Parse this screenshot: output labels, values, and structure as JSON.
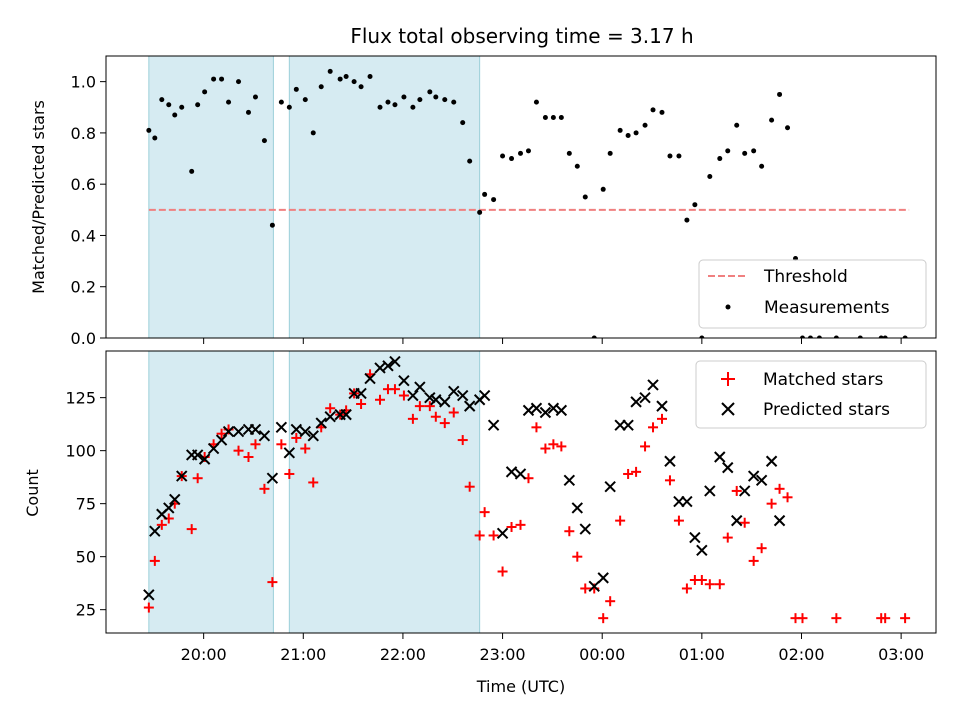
{
  "chart_data": [
    {
      "type": "scatter",
      "title": "Flux total observing time = 3.17 h",
      "xlabel": "",
      "ylabel": "Matched/Predicted stars",
      "ylim": [
        0,
        1.1
      ],
      "yticks": [
        0.0,
        0.2,
        0.4,
        0.6,
        0.8,
        1.0
      ],
      "ytick_labels": [
        "0.0",
        "0.2",
        "0.4",
        "0.6",
        "0.8",
        "1.0"
      ],
      "x_unit": "hours after 00:00 UTC of first night",
      "xlim": [
        19.02,
        27.35
      ],
      "legend_position": "lower-right",
      "legend": [
        {
          "name": "Threshold",
          "color": "#f08080"
        },
        {
          "name": "Measurements",
          "color": "#000000"
        }
      ],
      "shaded_intervals": [
        [
          19.45,
          20.7
        ],
        [
          20.86,
          22.77
        ]
      ],
      "threshold": {
        "value": 0.5,
        "x_range": [
          19.45,
          27.08
        ]
      },
      "x": [
        19.45,
        19.51,
        19.58,
        19.65,
        19.71,
        19.78,
        19.88,
        19.94,
        20.01,
        20.1,
        20.18,
        20.25,
        20.35,
        20.45,
        20.52,
        20.61,
        20.69,
        20.78,
        20.86,
        20.93,
        21.02,
        21.1,
        21.18,
        21.27,
        21.37,
        21.43,
        21.51,
        21.58,
        21.67,
        21.77,
        21.85,
        21.92,
        22.01,
        22.1,
        22.17,
        22.27,
        22.33,
        22.42,
        22.51,
        22.6,
        22.67,
        22.77,
        22.82,
        22.91,
        23.0,
        23.09,
        23.18,
        23.26,
        23.34,
        23.43,
        23.51,
        23.59,
        23.67,
        23.75,
        23.83,
        23.92,
        24.01,
        24.08,
        24.18,
        24.26,
        24.34,
        24.43,
        24.51,
        24.6,
        24.68,
        24.77,
        24.85,
        24.93,
        25.0,
        25.08,
        25.18,
        25.26,
        25.35,
        25.43,
        25.52,
        25.6,
        25.7,
        25.78,
        25.86,
        25.94,
        26.01,
        26.09,
        26.18,
        26.35,
        26.59,
        26.8,
        26.84,
        27.04
      ],
      "values": [
        0.81,
        0.78,
        0.93,
        0.91,
        0.87,
        0.9,
        0.65,
        0.91,
        0.96,
        1.01,
        1.01,
        0.92,
        1.0,
        0.88,
        0.94,
        0.77,
        0.44,
        0.92,
        0.9,
        0.97,
        0.93,
        0.8,
        0.98,
        1.04,
        1.01,
        1.02,
        1.0,
        0.98,
        1.02,
        0.9,
        0.92,
        0.91,
        0.94,
        0.9,
        0.93,
        0.96,
        0.94,
        0.93,
        0.92,
        0.84,
        0.69,
        0.49,
        0.56,
        0.54,
        0.71,
        0.7,
        0.72,
        0.73,
        0.92,
        0.86,
        0.86,
        0.86,
        0.72,
        0.67,
        0.55,
        0.0,
        0.58,
        0.72,
        0.81,
        0.79,
        0.8,
        0.83,
        0.89,
        0.88,
        0.71,
        0.71,
        0.46,
        0.52,
        0.0,
        0.63,
        0.7,
        0.73,
        0.83,
        0.72,
        0.73,
        0.67,
        0.85,
        0.95,
        0.82,
        0.31,
        0.0,
        0.0,
        0.0,
        0.0,
        0.0,
        0.0,
        0.0,
        0.0
      ]
    },
    {
      "type": "scatter",
      "title": "",
      "xlabel": "Time (UTC)",
      "ylabel": "Count",
      "ylim": [
        14,
        147
      ],
      "yticks": [
        25,
        50,
        75,
        100,
        125
      ],
      "ytick_labels": [
        "25",
        "50",
        "75",
        "100",
        "125"
      ],
      "x_unit": "hours after 00:00 UTC of first night",
      "xlim": [
        19.02,
        27.35
      ],
      "xticks": [
        20,
        21,
        22,
        23,
        24,
        25,
        26,
        27
      ],
      "xtick_labels": [
        "20:00",
        "21:00",
        "22:00",
        "23:00",
        "00:00",
        "01:00",
        "02:00",
        "03:00"
      ],
      "legend_position": "upper-right",
      "shaded_intervals": [
        [
          19.45,
          20.7
        ],
        [
          20.86,
          22.77
        ]
      ],
      "series": [
        {
          "name": "Matched stars",
          "marker": "plus",
          "color": "#ff0000",
          "points": [
            [
              19.45,
              26
            ],
            [
              19.51,
              48
            ],
            [
              19.58,
              65
            ],
            [
              19.65,
              68
            ],
            [
              19.71,
              75
            ],
            [
              19.78,
              88
            ],
            [
              19.88,
              63
            ],
            [
              19.94,
              87
            ],
            [
              20.01,
              97
            ],
            [
              20.1,
              103
            ],
            [
              20.18,
              108
            ],
            [
              20.25,
              110
            ],
            [
              20.35,
              100
            ],
            [
              20.45,
              97
            ],
            [
              20.52,
              103
            ],
            [
              20.61,
              82
            ],
            [
              20.69,
              38
            ],
            [
              20.78,
              103
            ],
            [
              20.86,
              89
            ],
            [
              20.93,
              106
            ],
            [
              21.02,
              101
            ],
            [
              21.1,
              85
            ],
            [
              21.18,
              111
            ],
            [
              21.27,
              120
            ],
            [
              21.37,
              117
            ],
            [
              21.43,
              119
            ],
            [
              21.51,
              127
            ],
            [
              21.58,
              122
            ],
            [
              21.67,
              136
            ],
            [
              21.77,
              124
            ],
            [
              21.85,
              129
            ],
            [
              21.92,
              129
            ],
            [
              22.01,
              126
            ],
            [
              22.1,
              115
            ],
            [
              22.17,
              121
            ],
            [
              22.27,
              121
            ],
            [
              22.33,
              116
            ],
            [
              22.42,
              113
            ],
            [
              22.51,
              118
            ],
            [
              22.6,
              105
            ],
            [
              22.67,
              83
            ],
            [
              22.77,
              60
            ],
            [
              22.82,
              71
            ],
            [
              22.91,
              60
            ],
            [
              23.0,
              43
            ],
            [
              23.09,
              64
            ],
            [
              23.18,
              65
            ],
            [
              23.26,
              87
            ],
            [
              23.34,
              111
            ],
            [
              23.43,
              101
            ],
            [
              23.51,
              103
            ],
            [
              23.59,
              102
            ],
            [
              23.67,
              62
            ],
            [
              23.75,
              50
            ],
            [
              23.83,
              35
            ],
            [
              23.92,
              35
            ],
            [
              24.01,
              21
            ],
            [
              24.08,
              29
            ],
            [
              24.18,
              67
            ],
            [
              24.26,
              89
            ],
            [
              24.34,
              90
            ],
            [
              24.43,
              102
            ],
            [
              24.51,
              111
            ],
            [
              24.6,
              115
            ],
            [
              24.68,
              86
            ],
            [
              24.77,
              67
            ],
            [
              24.85,
              35
            ],
            [
              24.93,
              39
            ],
            [
              25.0,
              39
            ],
            [
              25.08,
              37
            ],
            [
              25.18,
              37
            ],
            [
              25.26,
              59
            ],
            [
              25.35,
              81
            ],
            [
              25.43,
              66
            ],
            [
              25.52,
              48
            ],
            [
              25.6,
              54
            ],
            [
              25.7,
              75
            ],
            [
              25.78,
              82
            ],
            [
              25.86,
              78
            ],
            [
              25.94,
              21
            ],
            [
              26.01,
              21
            ],
            [
              26.35,
              21
            ],
            [
              26.8,
              21
            ],
            [
              26.84,
              21
            ],
            [
              27.04,
              21
            ]
          ]
        },
        {
          "name": "Predicted stars",
          "marker": "x",
          "color": "#000000",
          "points": [
            [
              19.45,
              32
            ],
            [
              19.51,
              62
            ],
            [
              19.58,
              70
            ],
            [
              19.65,
              73
            ],
            [
              19.71,
              77
            ],
            [
              19.78,
              88
            ],
            [
              19.88,
              98
            ],
            [
              19.94,
              98
            ],
            [
              20.01,
              96
            ],
            [
              20.1,
              101
            ],
            [
              20.18,
              105
            ],
            [
              20.25,
              109
            ],
            [
              20.35,
              109
            ],
            [
              20.45,
              110
            ],
            [
              20.52,
              110
            ],
            [
              20.61,
              107
            ],
            [
              20.69,
              87
            ],
            [
              20.78,
              111
            ],
            [
              20.86,
              99
            ],
            [
              20.93,
              110
            ],
            [
              21.02,
              109
            ],
            [
              21.1,
              107
            ],
            [
              21.18,
              113
            ],
            [
              21.27,
              116
            ],
            [
              21.37,
              117
            ],
            [
              21.43,
              117
            ],
            [
              21.51,
              127
            ],
            [
              21.58,
              127
            ],
            [
              21.67,
              134
            ],
            [
              21.77,
              139
            ],
            [
              21.85,
              140
            ],
            [
              21.92,
              142
            ],
            [
              22.01,
              133
            ],
            [
              22.1,
              126
            ],
            [
              22.17,
              130
            ],
            [
              22.27,
              125
            ],
            [
              22.33,
              124
            ],
            [
              22.42,
              123
            ],
            [
              22.51,
              128
            ],
            [
              22.6,
              126
            ],
            [
              22.67,
              121
            ],
            [
              22.77,
              124
            ],
            [
              22.82,
              126
            ],
            [
              22.91,
              112
            ],
            [
              23.0,
              61
            ],
            [
              23.09,
              90
            ],
            [
              23.18,
              89
            ],
            [
              23.26,
              119
            ],
            [
              23.34,
              120
            ],
            [
              23.43,
              118
            ],
            [
              23.51,
              120
            ],
            [
              23.59,
              119
            ],
            [
              23.67,
              86
            ],
            [
              23.75,
              73
            ],
            [
              23.83,
              63
            ],
            [
              23.92,
              36
            ],
            [
              24.01,
              40
            ],
            [
              24.08,
              83
            ],
            [
              24.18,
              112
            ],
            [
              24.26,
              112
            ],
            [
              24.34,
              123
            ],
            [
              24.43,
              125
            ],
            [
              24.51,
              131
            ],
            [
              24.6,
              121
            ],
            [
              24.68,
              95
            ],
            [
              24.77,
              76
            ],
            [
              24.85,
              76
            ],
            [
              24.93,
              59
            ],
            [
              25.0,
              53
            ],
            [
              25.08,
              81
            ],
            [
              25.18,
              97
            ],
            [
              25.26,
              92
            ],
            [
              25.35,
              67
            ],
            [
              25.43,
              81
            ],
            [
              25.52,
              88
            ],
            [
              25.6,
              86
            ],
            [
              25.7,
              95
            ],
            [
              25.78,
              67
            ]
          ]
        }
      ]
    }
  ]
}
